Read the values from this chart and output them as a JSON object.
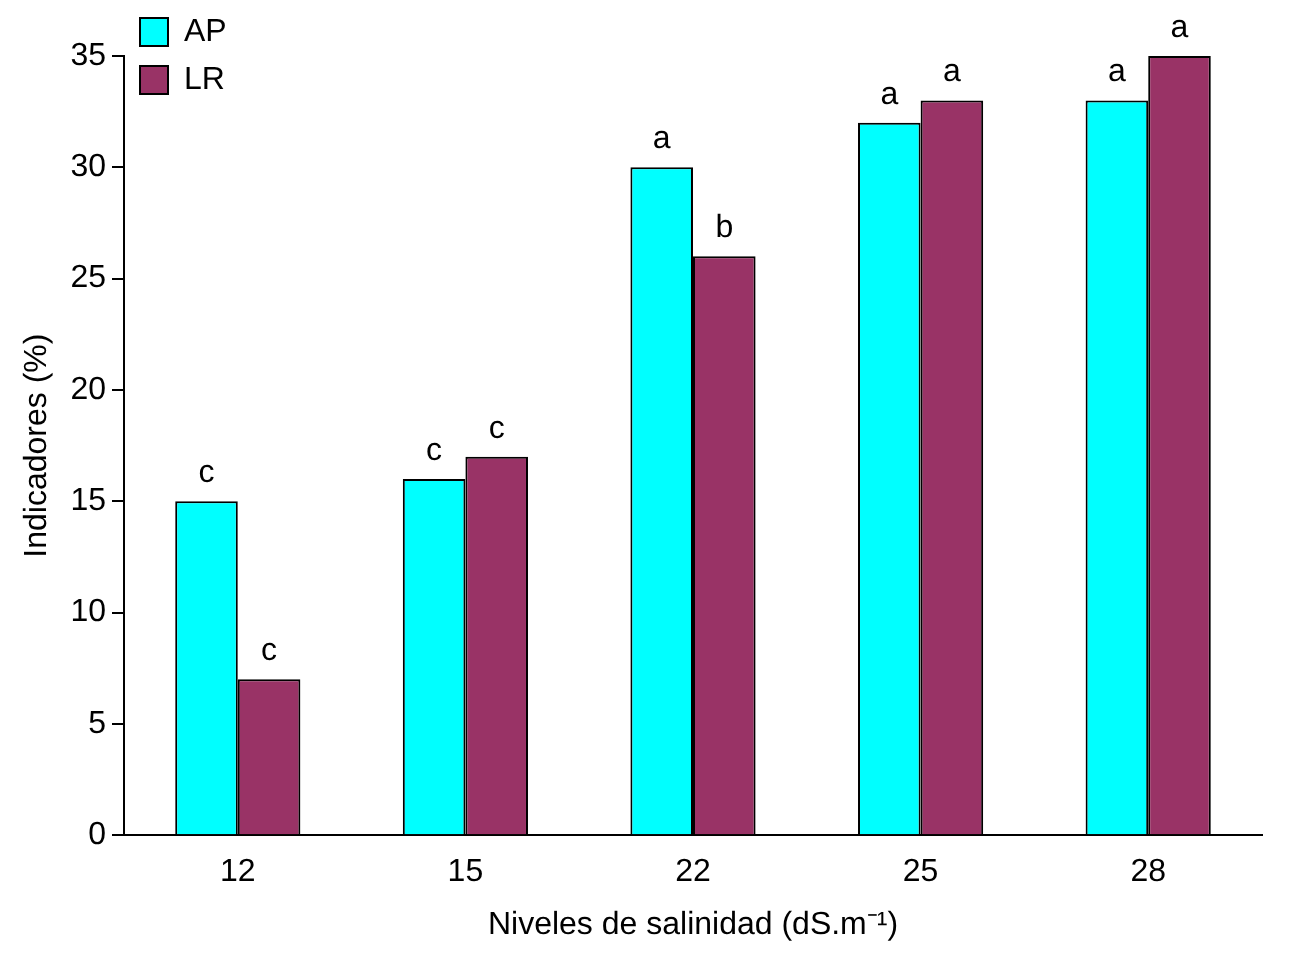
{
  "chart_data": {
    "type": "bar",
    "xlabel": "Niveles de salinidad (dS.m⁻¹)",
    "ylabel": "Indicadores (%)",
    "categories": [
      "12",
      "15",
      "22",
      "25",
      "28"
    ],
    "series": [
      {
        "name": "AP",
        "color": "#00ffff",
        "values": [
          15,
          16,
          30,
          32,
          33
        ]
      },
      {
        "name": "LR",
        "color": "#993366",
        "values": [
          7,
          17,
          26,
          33,
          35
        ]
      }
    ],
    "ylim": [
      0,
      35
    ],
    "yticks": [
      0,
      5,
      10,
      15,
      20,
      25,
      30,
      35
    ],
    "grid": false,
    "legend": "top left",
    "annotations": [
      {
        "text": "c",
        "x": "12",
        "y": 15
      },
      {
        "text": "c",
        "x": "12",
        "y": 7
      },
      {
        "text": "c",
        "x": "15",
        "y": 16
      },
      {
        "text": "c",
        "x": "15",
        "y": 17
      },
      {
        "text": "a",
        "x": "22",
        "y": 30
      },
      {
        "text": "b",
        "x": "22",
        "y": 26
      },
      {
        "text": "a",
        "x": "25",
        "y": 32
      },
      {
        "text": "a",
        "x": "25",
        "y": 33
      },
      {
        "text": "a",
        "x": "28",
        "y": 33
      },
      {
        "text": "a",
        "x": "28",
        "y": 35
      }
    ]
  }
}
